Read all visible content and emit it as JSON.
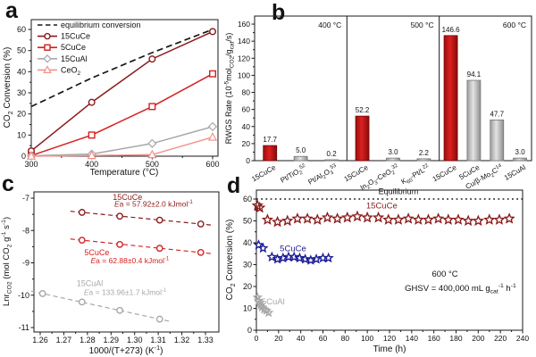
{
  "panels": {
    "a": {
      "letter": "a"
    },
    "b": {
      "letter": "b"
    },
    "c": {
      "letter": "c"
    },
    "d": {
      "letter": "d"
    }
  },
  "colors": {
    "frame": "#1a1a1a",
    "text": "#111111",
    "dark_red": "#8B1A1A",
    "red": "#D62020",
    "gray": "#A8A8A8",
    "salmon": "#F2928C",
    "navy": "#1C1C96",
    "bar_red_edge": "#6B0606",
    "bar_gray_edge": "#767676",
    "bar_red_grad": [
      "#9E0E0E",
      "#DB2020",
      "#8A0A0A"
    ],
    "bar_gray_grad": [
      "#9C9C9C",
      "#E3E3E3",
      "#8E8E8E"
    ]
  },
  "chart_data": [
    {
      "panel": "a",
      "type": "line",
      "xlabel": "Temperature (°C)",
      "ylabel": "CO2 Conversion (%)",
      "ylabel_parts": [
        {
          "t": "CO"
        },
        {
          "t": "2",
          "sub": true
        },
        {
          "t": " Conversion (%)"
        }
      ],
      "x": [
        300,
        400,
        500,
        600
      ],
      "xticks": [
        300,
        400,
        500,
        600
      ],
      "yticks": [
        0,
        10,
        20,
        30,
        40,
        50,
        60
      ],
      "ylim": [
        0,
        63
      ],
      "legend_position": "top-left",
      "series": [
        {
          "name": "equilibrium conversion",
          "values": [
            23.5,
            37,
            49,
            60
          ],
          "color": "#1a1a1a",
          "style": "dashed",
          "marker": "none"
        },
        {
          "name": "15CuCe",
          "values": [
            2.5,
            25.5,
            46,
            59
          ],
          "color": "#8B1A1A",
          "marker": "circle"
        },
        {
          "name": "5CuCe",
          "values": [
            0.3,
            10,
            23.5,
            39
          ],
          "color": "#D62020",
          "marker": "square"
        },
        {
          "name": "15CuAl",
          "values": [
            0.2,
            1,
            6,
            14
          ],
          "color": "#A8A8A8",
          "marker": "diamond"
        },
        {
          "name": "CeO2",
          "name_parts": [
            {
              "t": "CeO"
            },
            {
              "t": "2",
              "sub": true
            }
          ],
          "values": [
            0,
            0.3,
            0.7,
            9
          ],
          "color": "#F2928C",
          "marker": "triangle"
        }
      ]
    },
    {
      "panel": "b",
      "type": "bar",
      "ylabel": "RWGS Rate (10-5 molCO2/gcat/s)",
      "ylabel_parts": [
        {
          "t": "RWGS Rate (10"
        },
        {
          "t": "-5",
          "sup": true
        },
        {
          "t": "mol"
        },
        {
          "t": "CO2",
          "sub": true
        },
        {
          "t": "/g"
        },
        {
          "t": "cat",
          "sub": true
        },
        {
          "t": "/s)"
        }
      ],
      "yticks": [
        0,
        20,
        40,
        60,
        80,
        100,
        120,
        140,
        160
      ],
      "ylim": [
        0,
        160
      ],
      "groups": [
        {
          "temp": "400 °C",
          "bars": [
            {
              "label": "15CuCe",
              "value": 17.7,
              "value_label": "17.7",
              "highlight": true
            },
            {
              "label": "Pt/TiO2 [52]",
              "label_parts": [
                {
                  "t": "Pt/TiO"
                },
                {
                  "t": "2",
                  "sub": true
                },
                {
                  "t": "52",
                  "sup": true
                }
              ],
              "value": 5,
              "value_label": "5.0"
            },
            {
              "label": "Pt/Al2O3 [53]",
              "label_parts": [
                {
                  "t": "Pt/Al"
                },
                {
                  "t": "2",
                  "sub": true
                },
                {
                  "t": "O"
                },
                {
                  "t": "3",
                  "sub": true
                },
                {
                  "t": "53",
                  "sup": true
                }
              ],
              "value": 0.2,
              "value_label": "0.2"
            }
          ]
        },
        {
          "temp": "500 °C",
          "bars": [
            {
              "label": "15CuCe",
              "value": 52.2,
              "value_label": "52.2",
              "highlight": true
            },
            {
              "label": "In2O3-CeO2 [32]",
              "label_parts": [
                {
                  "t": "In"
                },
                {
                  "t": "2",
                  "sub": true
                },
                {
                  "t": "O"
                },
                {
                  "t": "3",
                  "sub": true
                },
                {
                  "t": "-CeO"
                },
                {
                  "t": "2",
                  "sub": true
                },
                {
                  "t": "32",
                  "sup": true
                }
              ],
              "value": 3,
              "value_label": "3.0"
            },
            {
              "label": "K60-Pt/L [22]",
              "label_parts": [
                {
                  "t": "K"
                },
                {
                  "t": "60",
                  "sub": true
                },
                {
                  "t": "-Pt/L"
                },
                {
                  "t": "22",
                  "sup": true
                }
              ],
              "value": 2.2,
              "value_label": "2.2"
            }
          ]
        },
        {
          "temp": "600 °C",
          "bars": [
            {
              "label": "15CuCe",
              "value": 146.6,
              "value_label": "146.6",
              "highlight": true
            },
            {
              "label": "5CuCe",
              "value": 94.1,
              "value_label": "94.1"
            },
            {
              "label": "Cu/β-Mo2C [14]",
              "label_parts": [
                {
                  "t": "Cu/β-Mo"
                },
                {
                  "t": "2",
                  "sub": true
                },
                {
                  "t": "C"
                },
                {
                  "t": "14",
                  "sup": true
                }
              ],
              "value": 47.7,
              "value_label": "47.7"
            },
            {
              "label": "15CuAl",
              "value": 3,
              "value_label": "3.0"
            }
          ]
        }
      ]
    },
    {
      "panel": "c",
      "type": "scatter",
      "xlabel": "1000/(T+273) (K-1)",
      "xlabel_parts": [
        {
          "t": "1000/(T+273) (K"
        },
        {
          "t": "-1",
          "sup": true
        },
        {
          "t": ")"
        }
      ],
      "ylabel": "LnrCO2 (mol CO2 g-1 s-1)",
      "ylabel_parts": [
        {
          "t": "Lnr"
        },
        {
          "t": "CO2",
          "sub": true
        },
        {
          "t": " (mol CO"
        },
        {
          "t": "2",
          "sub": true
        },
        {
          "t": " g"
        },
        {
          "t": "-1",
          "sup": true
        },
        {
          "t": " s"
        },
        {
          "t": "-1",
          "sup": true
        },
        {
          "t": ")"
        }
      ],
      "xticks": [
        "1.26",
        "1.27",
        "1.28",
        "1.29",
        "1.30",
        "1.31",
        "1.32",
        "1.33"
      ],
      "yticks": [
        -7,
        -8,
        -9,
        -10,
        -11
      ],
      "series": [
        {
          "name": "15CuCe",
          "color": "#8B1A1A",
          "points": [
            [
              1.2777,
              -7.44
            ],
            [
              1.2937,
              -7.56
            ],
            [
              1.3106,
              -7.68
            ],
            [
              1.328,
              -7.8
            ]
          ],
          "ea_label": "Ea = 57.92±2.0 kJmol-1",
          "ea_parts": [
            {
              "t": "E",
              "i": true
            },
            {
              "t": "a = 57.92±2.0 kJmol"
            },
            {
              "t": "-1",
              "sup": true
            }
          ],
          "name_pos": [
            1.297,
            -7.06
          ],
          "ea_pos": [
            1.308,
            -7.26
          ]
        },
        {
          "name": "5CuCe",
          "color": "#D62020",
          "points": [
            [
              1.2777,
              -8.3
            ],
            [
              1.2937,
              -8.43
            ],
            [
              1.3106,
              -8.55
            ],
            [
              1.328,
              -8.68
            ]
          ],
          "ea_label": "Ea = 62.88±0.4 kJmol-1",
          "ea_parts": [
            {
              "t": "E",
              "i": true
            },
            {
              "t": "a = 62.88±0.4 kJmol"
            },
            {
              "t": "-1",
              "sup": true
            }
          ],
          "name_pos": [
            1.284,
            -8.76
          ],
          "ea_pos": [
            1.298,
            -9.01
          ]
        },
        {
          "name": "15CuAl",
          "color": "#A8A8A8",
          "points": [
            [
              1.261,
              -9.95
            ],
            [
              1.2777,
              -10.21
            ],
            [
              1.2937,
              -10.47
            ],
            [
              1.3106,
              -10.74
            ]
          ],
          "ea_label": "Ea = 133.96±1.7 kJmol-1",
          "ea_parts": [
            {
              "t": "E",
              "i": true
            },
            {
              "t": "a = 133.96±1.7 kJmol"
            },
            {
              "t": "-1",
              "sup": true
            }
          ],
          "name_pos": [
            1.281,
            -9.72
          ],
          "ea_pos": [
            1.296,
            -9.99
          ]
        }
      ]
    },
    {
      "panel": "d",
      "type": "scatter",
      "xlabel": "Time (h)",
      "ylabel": "CO2 Conversion (%)",
      "ylabel_parts": [
        {
          "t": "CO"
        },
        {
          "t": "2",
          "sub": true
        },
        {
          "t": " Conversion (%)"
        }
      ],
      "xticks": [
        0,
        20,
        40,
        60,
        80,
        100,
        120,
        140,
        160,
        180,
        200,
        220,
        240
      ],
      "yticks": [
        0,
        10,
        20,
        30,
        40,
        50,
        60
      ],
      "equilibrium": {
        "value": 60,
        "label": "Equilibrium",
        "label_pos": [
          128,
          62.3
        ]
      },
      "annotations": [
        {
          "text": "600 °C",
          "pos": [
            170,
            24.5
          ]
        },
        {
          "text": "GHSV = 400,000 mL gcat-1 h-1",
          "parts": [
            {
              "t": "GHSV = 400,000 mL g"
            },
            {
              "t": "cat",
              "sub": true
            },
            {
              "t": "-1",
              "sup": true
            },
            {
              "t": " h"
            },
            {
              "t": "-1",
              "sup": true
            }
          ],
          "pos": [
            184,
            18
          ]
        }
      ],
      "series": [
        {
          "name": "15CuCe",
          "color": "#8B1A1A",
          "size": 5.2,
          "label_pos": [
            113,
            55.8
          ],
          "points": [
            [
              1,
              57
            ],
            [
              3,
              56
            ],
            [
              10,
              50.5
            ],
            [
              19,
              49.5
            ],
            [
              28,
              50
            ],
            [
              37,
              51
            ],
            [
              46,
              51
            ],
            [
              55,
              50.5
            ],
            [
              64,
              51.5
            ],
            [
              73,
              51
            ],
            [
              82,
              51.5
            ],
            [
              91,
              52
            ],
            [
              100,
              51.5
            ],
            [
              110,
              51.5
            ],
            [
              119,
              50.5
            ],
            [
              128,
              50.5
            ],
            [
              137,
              51
            ],
            [
              146,
              50.5
            ],
            [
              155,
              50.5
            ],
            [
              164,
              51
            ],
            [
              173,
              50.5
            ],
            [
              182,
              50.5
            ],
            [
              191,
              50
            ],
            [
              200,
              50
            ],
            [
              210,
              50.5
            ],
            [
              219,
              50.5
            ],
            [
              228,
              51
            ]
          ]
        },
        {
          "name": "5CuCe",
          "color": "#1C1C96",
          "size": 4.6,
          "label_pos": [
            33,
            36.2
          ],
          "points": [
            [
              2,
              39
            ],
            [
              6,
              37.5
            ],
            [
              14,
              33.5
            ],
            [
              19,
              32.5
            ],
            [
              24,
              33
            ],
            [
              29,
              33.5
            ],
            [
              34,
              33.5
            ],
            [
              39,
              33
            ],
            [
              44,
              32.5
            ],
            [
              49,
              32
            ],
            [
              54,
              32.5
            ],
            [
              60,
              33
            ],
            [
              65,
              33
            ]
          ]
        },
        {
          "name": "15CuAl",
          "color": "#A8A8A8",
          "size": 4.2,
          "label_pos": [
            13,
            11.8
          ],
          "points": [
            [
              1,
              15
            ],
            [
              2,
              13.5
            ],
            [
              3,
              12.5
            ],
            [
              4,
              11.5
            ],
            [
              5,
              10.5
            ],
            [
              7,
              9.5
            ],
            [
              9,
              9
            ],
            [
              11,
              8
            ]
          ]
        }
      ]
    }
  ]
}
